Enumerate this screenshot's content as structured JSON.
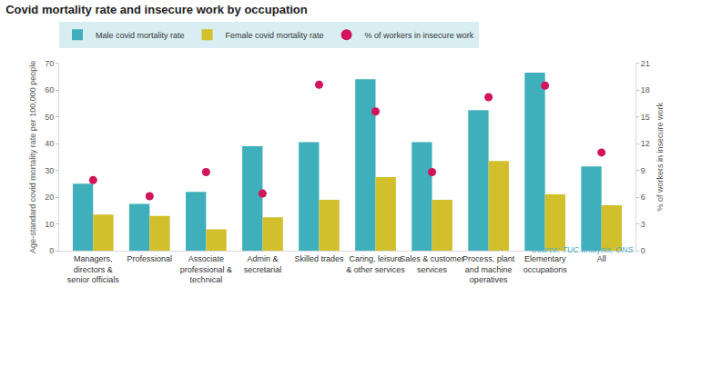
{
  "chart_data": {
    "type": "bar",
    "title": "Covid mortality rate and insecure work by occupation",
    "ylabel": "Age-standard covid mortality rate per 100,000 people",
    "y2label": "% of workers in insecure work",
    "source": "Source: TUC analysis, ONS",
    "legend": "top",
    "grid": false,
    "categories": [
      "Managers, directors & senior officials",
      "Professional",
      "Associate professional & technical",
      "Admin & secretarial",
      "Skilled trades",
      "Caring, leisure & other services",
      "Sales & customer services",
      "Process, plant and machine operatives",
      "Elementary occupations",
      "All"
    ],
    "series": [
      {
        "name": "Male covid mortality rate",
        "type": "bar",
        "color": "#3fb0bb",
        "values": [
          25,
          17.5,
          22,
          39,
          40.5,
          64,
          40.5,
          52.5,
          66.5,
          31.5
        ]
      },
      {
        "name": "Female covid mortality rate",
        "type": "bar",
        "color": "#d2bf2c",
        "values": [
          13.5,
          13,
          8,
          12.5,
          19,
          27.5,
          19,
          33.5,
          21,
          17
        ]
      },
      {
        "name": "% of workers in insecure work",
        "type": "scatter",
        "marker": "circle",
        "axis": "y2",
        "color": "#d2145a",
        "values": [
          7.9,
          6.1,
          8.8,
          6.4,
          18.6,
          15.6,
          8.8,
          17.2,
          18.5,
          11.0
        ]
      }
    ],
    "ylim": [
      0,
      70
    ],
    "yticks": [
      0,
      10,
      20,
      30,
      40,
      50,
      60,
      70
    ],
    "y2lim": [
      0,
      21
    ],
    "y2ticks": [
      0,
      3,
      6,
      9,
      12,
      15,
      18,
      21
    ]
  }
}
